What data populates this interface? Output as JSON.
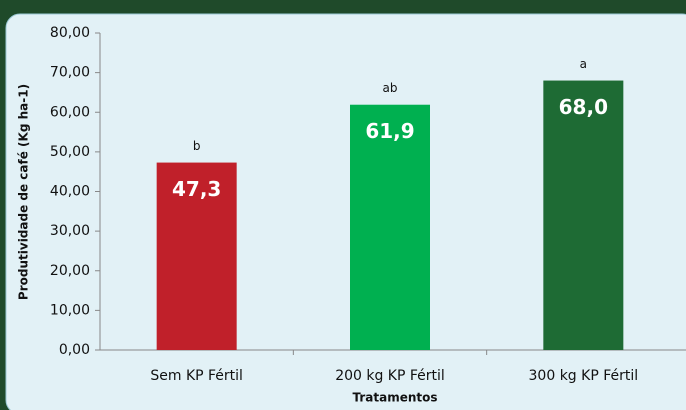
{
  "chart_data": {
    "type": "bar",
    "categories": [
      "Sem KP Fértil",
      "200 kg KP Fértil",
      "300 kg KP Fértil"
    ],
    "values": [
      47.3,
      61.9,
      68.0
    ],
    "value_labels": [
      "47,3",
      "61,9",
      "68,0"
    ],
    "annotations": [
      "b",
      "ab",
      "a"
    ],
    "colors": [
      "#c0202a",
      "#00b050",
      "#1e6b34"
    ],
    "x_label": "Tratamentos",
    "y_label": "Produtividade de café (Kg ha-1)",
    "ylim": [
      0,
      80
    ],
    "yticks": [
      {
        "value": 0,
        "label": "0,00"
      },
      {
        "value": 10,
        "label": "10,00"
      },
      {
        "value": 20,
        "label": "20,00"
      },
      {
        "value": 30,
        "label": "30,00"
      },
      {
        "value": 40,
        "label": "40,00"
      },
      {
        "value": 50,
        "label": "50,00"
      },
      {
        "value": 60,
        "label": "60,00"
      },
      {
        "value": 70,
        "label": "70,00"
      },
      {
        "value": 80,
        "label": "80,00"
      }
    ]
  }
}
